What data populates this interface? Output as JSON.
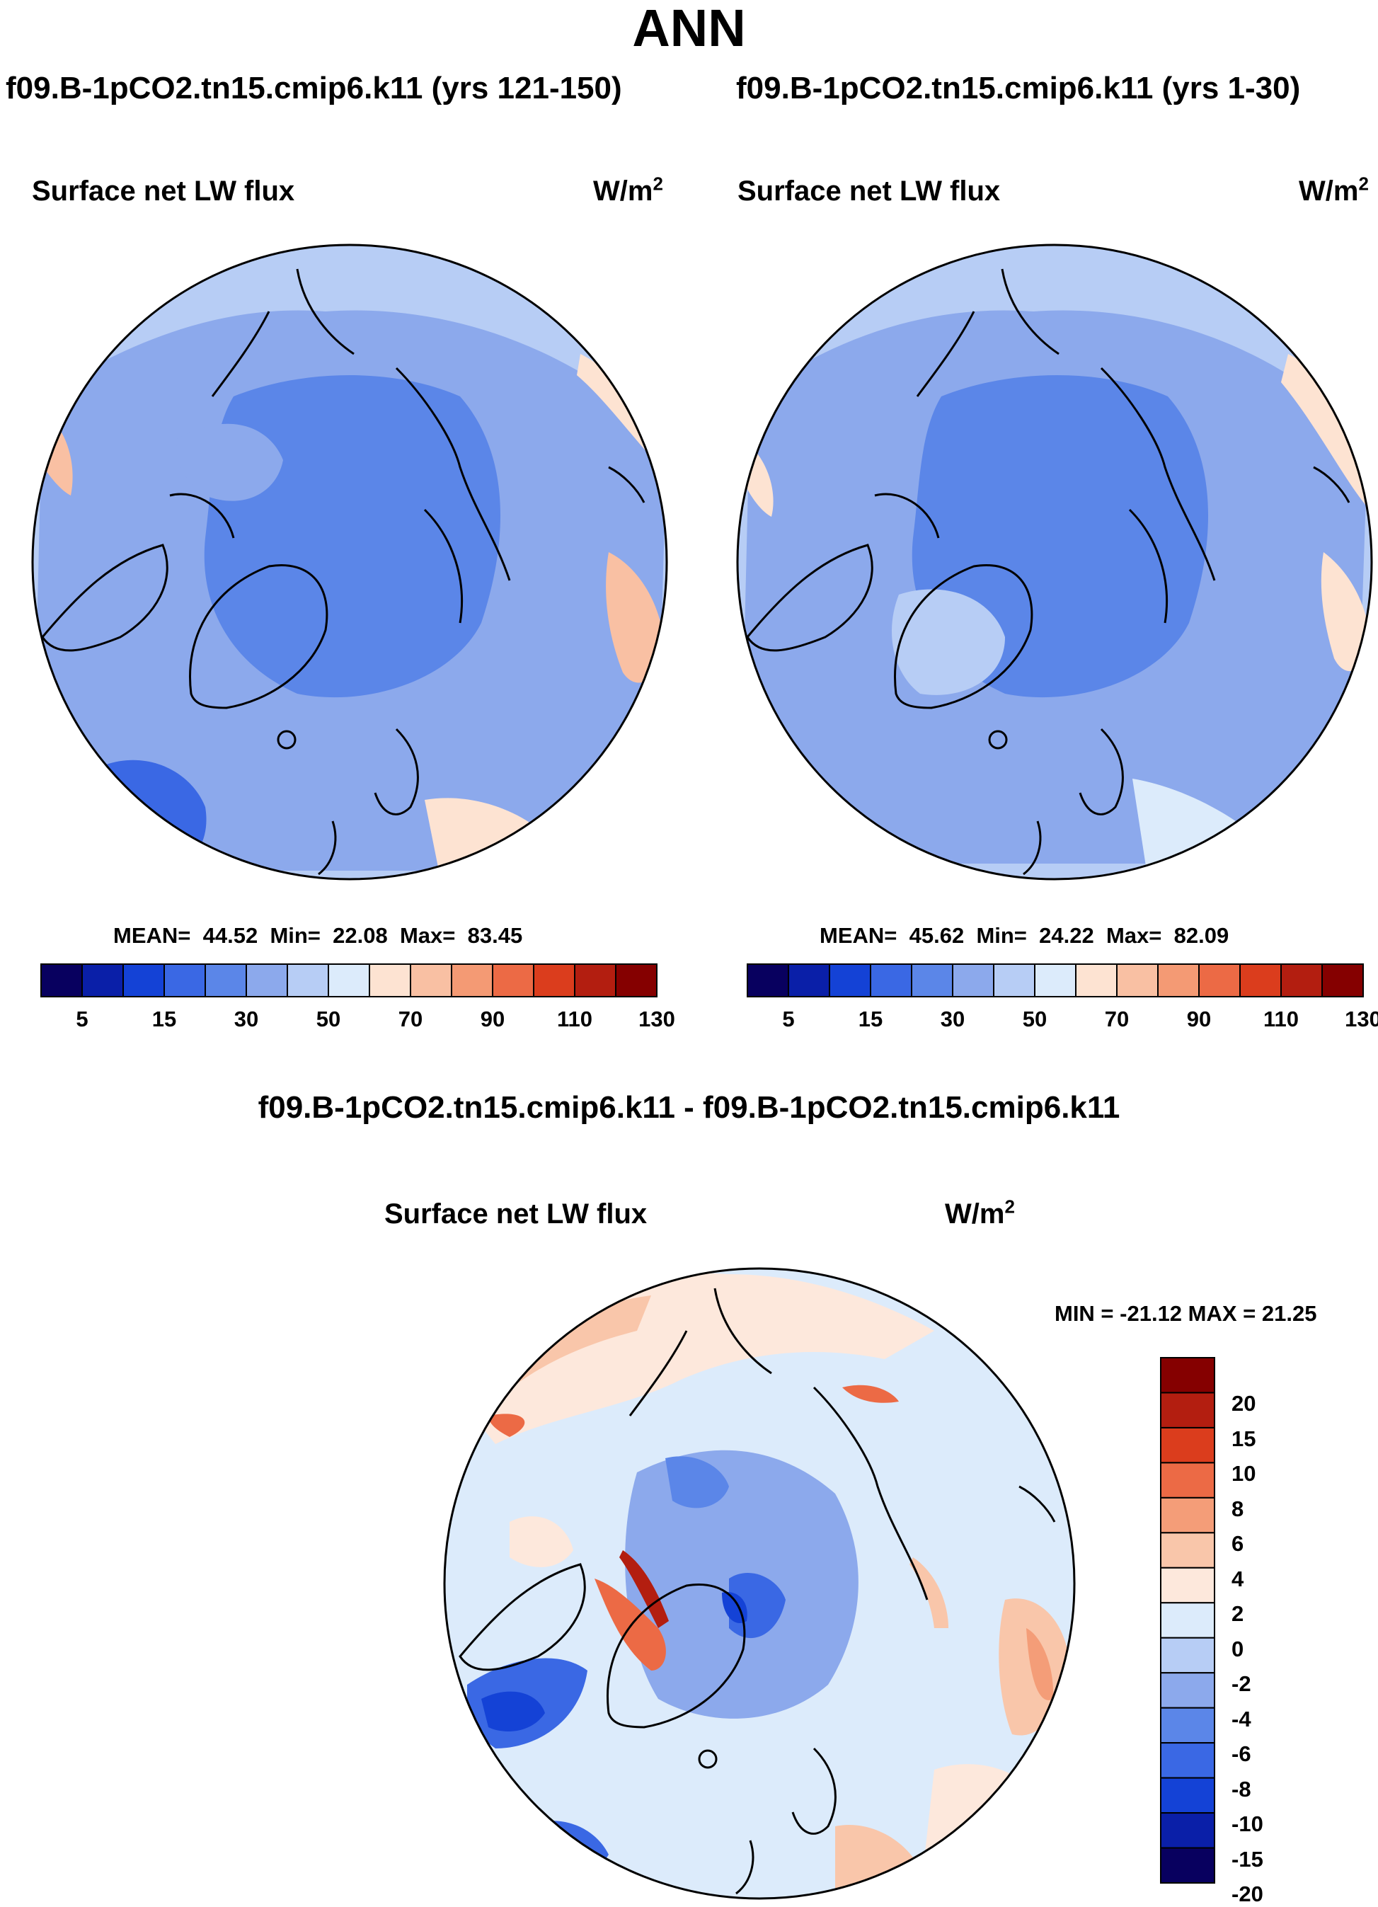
{
  "figure_title": "ANN",
  "panels": {
    "left": {
      "case": "f09.B-1pCO2.tn15.cmip6.k11 (yrs 121-150)",
      "variable": "Surface net LW flux",
      "units": "W/m",
      "units_sup": "2",
      "stats": {
        "mean_label": "MEAN=",
        "mean": "44.52",
        "min_label": "Min=",
        "min": "22.08",
        "max_label": "Max=",
        "max": "83.45"
      }
    },
    "right": {
      "case": "f09.B-1pCO2.tn15.cmip6.k11 (yrs 1-30)",
      "variable": "Surface net LW flux",
      "units": "W/m",
      "units_sup": "2",
      "stats": {
        "mean_label": "MEAN=",
        "mean": "45.62",
        "min_label": "Min=",
        "min": "24.22",
        "max_label": "Max=",
        "max": "82.09"
      }
    },
    "diff": {
      "case": "f09.B-1pCO2.tn15.cmip6.k11 - f09.B-1pCO2.tn15.cmip6.k11",
      "variable": "Surface net LW flux",
      "units": "W/m",
      "units_sup": "2",
      "minmax": "MIN = -21.12 MAX =  21.25"
    }
  },
  "colorbars": {
    "main": {
      "colors": [
        "#08005f",
        "#0a1fa8",
        "#1442d6",
        "#3a68e4",
        "#5b86e8",
        "#8ca9ec",
        "#b7cdf5",
        "#dcebfb",
        "#fde3d2",
        "#f9c0a3",
        "#f49a74",
        "#ec6a45",
        "#db3d1d",
        "#b31e10",
        "#850000"
      ],
      "tick_labels": [
        "5",
        "15",
        "30",
        "50",
        "70",
        "90",
        "110",
        "130"
      ]
    },
    "diff": {
      "colors": [
        "#08005f",
        "#0a1fa8",
        "#1442d6",
        "#3a68e4",
        "#5b86e8",
        "#8ca9ec",
        "#b7cdf5",
        "#dcebfb",
        "#fde8dc",
        "#f9c6aa",
        "#f49d78",
        "#ec6a45",
        "#db3d1d",
        "#b31e10",
        "#850000"
      ],
      "tick_labels": [
        "20",
        "15",
        "10",
        "8",
        "6",
        "4",
        "2",
        "0",
        "-2",
        "-4",
        "-6",
        "-8",
        "-10",
        "-15",
        "-20"
      ]
    }
  },
  "chart_data": [
    {
      "type": "heatmap",
      "projection": "north-polar-stereographic",
      "title": "Surface net LW flux",
      "case": "f09.B-1pCO2.tn15.cmip6.k11 (yrs 121-150)",
      "units": "W/m^2",
      "mean": 44.52,
      "min": 22.08,
      "max": 83.45,
      "levels": [
        5,
        10,
        15,
        20,
        30,
        40,
        50,
        60,
        70,
        80,
        90,
        100,
        110,
        120,
        130
      ]
    },
    {
      "type": "heatmap",
      "projection": "north-polar-stereographic",
      "title": "Surface net LW flux",
      "case": "f09.B-1pCO2.tn15.cmip6.k11 (yrs 1-30)",
      "units": "W/m^2",
      "mean": 45.62,
      "min": 24.22,
      "max": 82.09,
      "levels": [
        5,
        10,
        15,
        20,
        30,
        40,
        50,
        60,
        70,
        80,
        90,
        100,
        110,
        120,
        130
      ]
    },
    {
      "type": "heatmap",
      "projection": "north-polar-stereographic",
      "title": "Surface net LW flux",
      "case": "f09.B-1pCO2.tn15.cmip6.k11 - f09.B-1pCO2.tn15.cmip6.k11",
      "units": "W/m^2",
      "min": -21.12,
      "max": 21.25,
      "levels": [
        -20,
        -15,
        -10,
        -8,
        -6,
        -4,
        -2,
        0,
        2,
        4,
        6,
        8,
        10,
        15,
        20
      ]
    }
  ]
}
